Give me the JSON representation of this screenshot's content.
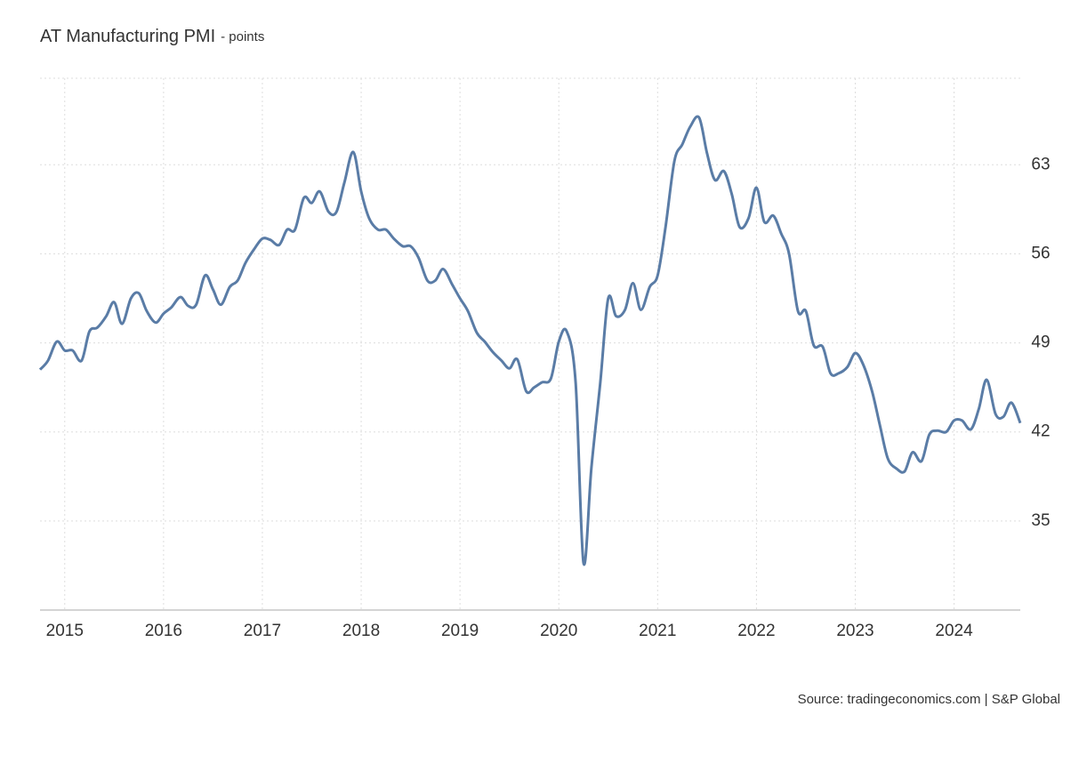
{
  "chart_data": {
    "type": "line",
    "title": "AT Manufacturing PMI",
    "subtitle": "- points",
    "source": "Source: tradingeconomics.com | S&P Global",
    "x": [
      2014.75,
      2014.83,
      2014.92,
      2015.0,
      2015.08,
      2015.17,
      2015.25,
      2015.33,
      2015.42,
      2015.5,
      2015.58,
      2015.67,
      2015.75,
      2015.83,
      2015.92,
      2016.0,
      2016.08,
      2016.17,
      2016.25,
      2016.33,
      2016.42,
      2016.5,
      2016.58,
      2016.67,
      2016.75,
      2016.83,
      2016.92,
      2017.0,
      2017.08,
      2017.17,
      2017.25,
      2017.33,
      2017.42,
      2017.5,
      2017.58,
      2017.67,
      2017.75,
      2017.83,
      2017.92,
      2018.0,
      2018.08,
      2018.17,
      2018.25,
      2018.33,
      2018.42,
      2018.5,
      2018.58,
      2018.67,
      2018.75,
      2018.83,
      2018.92,
      2019.0,
      2019.08,
      2019.17,
      2019.25,
      2019.33,
      2019.42,
      2019.5,
      2019.58,
      2019.67,
      2019.75,
      2019.83,
      2019.92,
      2020.0,
      2020.08,
      2020.17,
      2020.25,
      2020.33,
      2020.42,
      2020.5,
      2020.58,
      2020.67,
      2020.75,
      2020.83,
      2020.92,
      2021.0,
      2021.08,
      2021.17,
      2021.25,
      2021.33,
      2021.42,
      2021.5,
      2021.58,
      2021.67,
      2021.75,
      2021.83,
      2021.92,
      2022.0,
      2022.08,
      2022.17,
      2022.25,
      2022.33,
      2022.42,
      2022.5,
      2022.58,
      2022.67,
      2022.75,
      2022.83,
      2022.92,
      2023.0,
      2023.08,
      2023.17,
      2023.25,
      2023.33,
      2023.42,
      2023.5,
      2023.58,
      2023.67,
      2023.75,
      2023.83,
      2023.92,
      2024.0,
      2024.08,
      2024.17,
      2024.25,
      2024.33,
      2024.42,
      2024.5,
      2024.58,
      2024.67
    ],
    "series": [
      {
        "name": "AT Manufacturing PMI",
        "color": "#5a7ca6",
        "values": [
          46.9,
          47.6,
          49.1,
          48.4,
          48.4,
          47.6,
          49.9,
          50.2,
          51.1,
          52.2,
          50.5,
          52.5,
          52.9,
          51.5,
          50.6,
          51.3,
          51.8,
          52.6,
          51.9,
          52.0,
          54.3,
          53.2,
          52.0,
          53.4,
          53.9,
          55.3,
          56.4,
          57.2,
          57.1,
          56.7,
          57.9,
          57.9,
          60.4,
          60.0,
          60.9,
          59.3,
          59.3,
          61.6,
          64.0,
          60.9,
          58.8,
          57.9,
          57.9,
          57.2,
          56.6,
          56.6,
          55.7,
          53.9,
          53.9,
          54.8,
          53.6,
          52.5,
          51.5,
          49.8,
          49.1,
          48.3,
          47.6,
          47.0,
          47.7,
          45.2,
          45.5,
          45.9,
          46.2,
          49.1,
          49.9,
          45.9,
          31.7,
          39.2,
          45.9,
          52.5,
          51.1,
          51.6,
          53.7,
          51.6,
          53.4,
          54.3,
          58.1,
          63.3,
          64.6,
          66.0,
          66.7,
          63.9,
          61.8,
          62.5,
          60.7,
          58.1,
          58.8,
          61.2,
          58.5,
          59.0,
          57.6,
          56.0,
          51.5,
          51.5,
          48.8,
          48.7,
          46.6,
          46.6,
          47.1,
          48.2,
          47.3,
          45.2,
          42.5,
          39.9,
          39.1,
          38.9,
          40.4,
          39.7,
          41.8,
          42.1,
          42.0,
          42.9,
          42.9,
          42.2,
          43.8,
          46.1,
          43.4,
          43.2,
          44.3,
          42.7
        ]
      }
    ],
    "xlim": [
      2014.75,
      2024.67
    ],
    "xticks": [
      2015,
      2016,
      2017,
      2018,
      2019,
      2020,
      2021,
      2022,
      2023,
      2024
    ],
    "ylim": [
      28,
      69.8
    ],
    "yticks": [
      35,
      42,
      49,
      56,
      63
    ],
    "grid": true
  }
}
